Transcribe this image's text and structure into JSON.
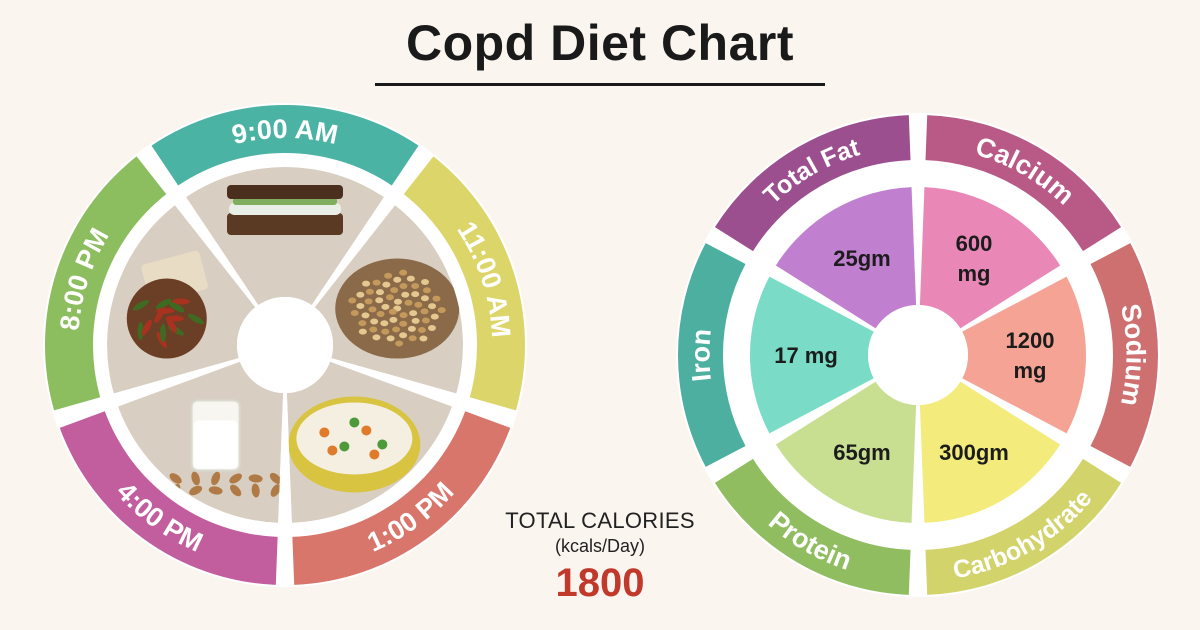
{
  "title": "Copd Diet Chart",
  "meal_schedule": {
    "times": [
      {
        "label": "9:00 AM",
        "color": "#4bb3a4",
        "food": "cucumber-sandwich-image"
      },
      {
        "label": "11:00 AM",
        "color": "#dcd56a",
        "food": "sprouts-image"
      },
      {
        "label": "1:00 PM",
        "color": "#d9766c",
        "food": "vegetable-rice-image"
      },
      {
        "label": "4:00 PM",
        "color": "#c25d9e",
        "food": "almond-milk-image"
      },
      {
        "label": "8:00 PM",
        "color": "#8cbd5e",
        "food": "okra-flatbread-image"
      }
    ]
  },
  "nutrients": {
    "items": [
      {
        "label": "Total Fat",
        "value": [
          "25gm"
        ],
        "ring_color": "#9c4f8e",
        "fill_color": "#c17fd0"
      },
      {
        "label": "Calcium",
        "value": [
          "600",
          "mg"
        ],
        "ring_color": "#b95986",
        "fill_color": "#e987b6"
      },
      {
        "label": "Sodium",
        "value": [
          "1200",
          "mg"
        ],
        "ring_color": "#cf7070",
        "fill_color": "#f5a394"
      },
      {
        "label": "Carbohydrate",
        "value": [
          "300gm"
        ],
        "ring_color": "#d3d36b",
        "fill_color": "#f3eb7c"
      },
      {
        "label": "Protein",
        "value": [
          "65gm"
        ],
        "ring_color": "#8fbd5f",
        "fill_color": "#c8df91"
      },
      {
        "label": "Iron",
        "value": [
          "17 mg"
        ],
        "ring_color": "#4caf9f",
        "fill_color": "#7adcc7"
      }
    ]
  },
  "calories": {
    "label": "TOTAL CALORIES",
    "unit": "(kcals/Day)",
    "value": "1800"
  }
}
